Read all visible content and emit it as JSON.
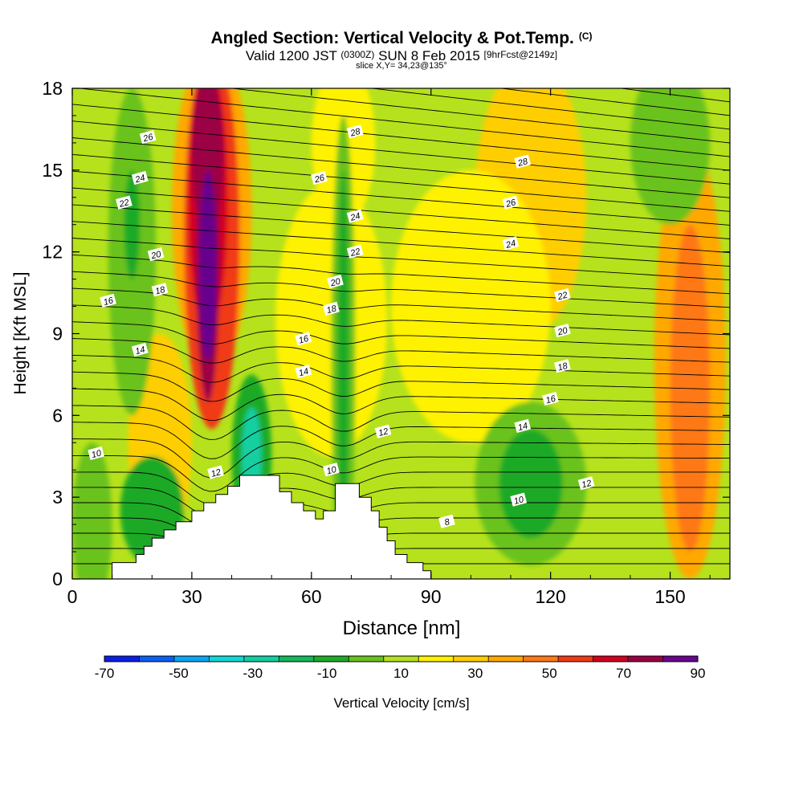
{
  "title": {
    "main": "Angled Section: Vertical Velocity & Pot.Temp.",
    "main_unit": "(C)",
    "valid_prefix": "Valid 1200 JST",
    "valid_utc": "(0300Z)",
    "valid_date": "SUN 8 Feb 2015",
    "valid_fcst": "[9hrFcst@2149z]",
    "slice": "slice X,Y= 34,23@135°"
  },
  "chart_data": {
    "type": "heatmap",
    "xlabel": "Distance [nm]",
    "ylabel": "Height [Kft MSL]",
    "xlim": [
      0,
      165
    ],
    "ylim": [
      0,
      18
    ],
    "x_ticks": [
      "0",
      "30",
      "60",
      "90",
      "120",
      "150"
    ],
    "y_ticks": [
      "0",
      "3",
      "6",
      "9",
      "12",
      "15",
      "18"
    ],
    "colorbar": {
      "label": "Vertical Velocity [cm/s]",
      "tick_labels": [
        "-70",
        "-50",
        "-30",
        "-10",
        "10",
        "30",
        "50",
        "70",
        "90"
      ],
      "levels": [
        -70,
        -60,
        -50,
        -40,
        -30,
        -20,
        -10,
        0,
        10,
        20,
        30,
        40,
        50,
        60,
        70,
        80,
        90
      ],
      "colors": [
        "#0b1ee6",
        "#0a5ff0",
        "#0aa6f2",
        "#10d7d7",
        "#12cfa0",
        "#12b85a",
        "#1faa28",
        "#6ac21e",
        "#b5e21c",
        "#fff200",
        "#ffce00",
        "#ffa800",
        "#ff7818",
        "#f03a18",
        "#d40020",
        "#9c0044",
        "#68068e"
      ]
    },
    "background_color": "#b5e21c",
    "vertical_velocity_blobs": [
      {
        "x": 35,
        "y": 13.5,
        "rx": 10,
        "ry": 6,
        "value": 40
      },
      {
        "x": 35,
        "y": 12.5,
        "rx": 7,
        "ry": 7,
        "value": 60
      },
      {
        "x": 34,
        "y": 14,
        "rx": 5,
        "ry": 5,
        "value": 70
      },
      {
        "x": 34,
        "y": 12.0,
        "rx": 3,
        "ry": 5.5,
        "value": 80
      },
      {
        "x": 34,
        "y": 15.5,
        "rx": 4,
        "ry": 3,
        "value": 80
      },
      {
        "x": 34,
        "y": 11.5,
        "rx": 2.2,
        "ry": 3.5,
        "value": 90
      },
      {
        "x": 22,
        "y": 5,
        "rx": 8,
        "ry": 4,
        "value": 30
      },
      {
        "x": 65,
        "y": 9.5,
        "rx": 14,
        "ry": 5,
        "value": 20
      },
      {
        "x": 68,
        "y": 16,
        "rx": 8,
        "ry": 3,
        "value": 20
      },
      {
        "x": 115,
        "y": 14,
        "rx": 14,
        "ry": 5,
        "value": 30
      },
      {
        "x": 100,
        "y": 10,
        "rx": 20,
        "ry": 5,
        "value": 20
      },
      {
        "x": 155,
        "y": 8,
        "rx": 9,
        "ry": 8,
        "value": 40
      },
      {
        "x": 155,
        "y": 7,
        "rx": 5,
        "ry": 6,
        "value": 50
      },
      {
        "x": 15,
        "y": 12,
        "rx": 6,
        "ry": 6,
        "value": 0
      },
      {
        "x": 15,
        "y": 13,
        "rx": 2,
        "ry": 2,
        "value": -10
      },
      {
        "x": 45,
        "y": 4.5,
        "rx": 5,
        "ry": 3,
        "value": -10
      },
      {
        "x": 45,
        "y": 4.5,
        "rx": 2.5,
        "ry": 1.8,
        "value": -30
      },
      {
        "x": 68,
        "y": 8,
        "rx": 3,
        "ry": 9,
        "value": 0
      },
      {
        "x": 68,
        "y": 8,
        "rx": 1.5,
        "ry": 7,
        "value": -10
      },
      {
        "x": 115,
        "y": 3.5,
        "rx": 14,
        "ry": 3,
        "value": 0
      },
      {
        "x": 115,
        "y": 3.5,
        "rx": 8,
        "ry": 2,
        "value": -10
      },
      {
        "x": 20,
        "y": 2.5,
        "rx": 8,
        "ry": 2,
        "value": -10
      },
      {
        "x": 5,
        "y": 2,
        "rx": 5,
        "ry": 3,
        "value": 0
      },
      {
        "x": 150,
        "y": 16,
        "rx": 10,
        "ry": 3,
        "value": 0
      }
    ],
    "terrain": [
      [
        10,
        0
      ],
      [
        10,
        0.6
      ],
      [
        16,
        0.6
      ],
      [
        16,
        0.9
      ],
      [
        18,
        0.9
      ],
      [
        18,
        1.2
      ],
      [
        20,
        1.2
      ],
      [
        20,
        1.5
      ],
      [
        23,
        1.5
      ],
      [
        23,
        1.8
      ],
      [
        26,
        1.8
      ],
      [
        26,
        2.1
      ],
      [
        30,
        2.1
      ],
      [
        30,
        2.5
      ],
      [
        33,
        2.5
      ],
      [
        33,
        2.8
      ],
      [
        36,
        2.8
      ],
      [
        36,
        3.1
      ],
      [
        39,
        3.1
      ],
      [
        39,
        3.4
      ],
      [
        42,
        3.4
      ],
      [
        42,
        3.8
      ],
      [
        52,
        3.8
      ],
      [
        52,
        3.2
      ],
      [
        55,
        3.2
      ],
      [
        55,
        2.8
      ],
      [
        58,
        2.8
      ],
      [
        58,
        2.5
      ],
      [
        61,
        2.5
      ],
      [
        61,
        2.2
      ],
      [
        63,
        2.2
      ],
      [
        63,
        2.5
      ],
      [
        66,
        2.5
      ],
      [
        66,
        3.5
      ],
      [
        72,
        3.5
      ],
      [
        72,
        3.0
      ],
      [
        75,
        3.0
      ],
      [
        75,
        2.5
      ],
      [
        77,
        2.5
      ],
      [
        77,
        1.9
      ],
      [
        79,
        1.9
      ],
      [
        79,
        1.4
      ],
      [
        81,
        1.4
      ],
      [
        81,
        0.9
      ],
      [
        84,
        0.9
      ],
      [
        84,
        0.6
      ],
      [
        88,
        0.6
      ],
      [
        88,
        0.3
      ],
      [
        90,
        0.3
      ],
      [
        90,
        0
      ]
    ],
    "theta_levels": [
      8,
      10,
      12,
      14,
      16,
      18,
      20,
      22,
      24,
      26,
      28
    ],
    "contour_labels": [
      {
        "text": "26",
        "x": 19,
        "y": 16.2
      },
      {
        "text": "24",
        "x": 17,
        "y": 14.7
      },
      {
        "text": "22",
        "x": 13,
        "y": 13.8
      },
      {
        "text": "20",
        "x": 21,
        "y": 11.9
      },
      {
        "text": "18",
        "x": 22,
        "y": 10.6
      },
      {
        "text": "16",
        "x": 9,
        "y": 10.2
      },
      {
        "text": "14",
        "x": 17,
        "y": 8.4
      },
      {
        "text": "10",
        "x": 6,
        "y": 4.6
      },
      {
        "text": "12",
        "x": 36,
        "y": 3.9
      },
      {
        "text": "28",
        "x": 71,
        "y": 16.4
      },
      {
        "text": "26",
        "x": 62,
        "y": 14.7
      },
      {
        "text": "24",
        "x": 71,
        "y": 13.3
      },
      {
        "text": "22",
        "x": 71,
        "y": 12.0
      },
      {
        "text": "20",
        "x": 66,
        "y": 10.9
      },
      {
        "text": "18",
        "x": 65,
        "y": 9.9
      },
      {
        "text": "16",
        "x": 58,
        "y": 8.8
      },
      {
        "text": "14",
        "x": 58,
        "y": 7.6
      },
      {
        "text": "12",
        "x": 78,
        "y": 5.4
      },
      {
        "text": "10",
        "x": 65,
        "y": 4.0
      },
      {
        "text": "8",
        "x": 94,
        "y": 2.1
      },
      {
        "text": "28",
        "x": 113,
        "y": 15.3
      },
      {
        "text": "26",
        "x": 110,
        "y": 13.8
      },
      {
        "text": "24",
        "x": 110,
        "y": 12.3
      },
      {
        "text": "22",
        "x": 123,
        "y": 10.4
      },
      {
        "text": "20",
        "x": 123,
        "y": 9.1
      },
      {
        "text": "18",
        "x": 123,
        "y": 7.8
      },
      {
        "text": "16",
        "x": 120,
        "y": 6.6
      },
      {
        "text": "14",
        "x": 113,
        "y": 5.6
      },
      {
        "text": "10",
        "x": 112,
        "y": 2.9
      },
      {
        "text": "12",
        "x": 129,
        "y": 3.5
      }
    ]
  }
}
